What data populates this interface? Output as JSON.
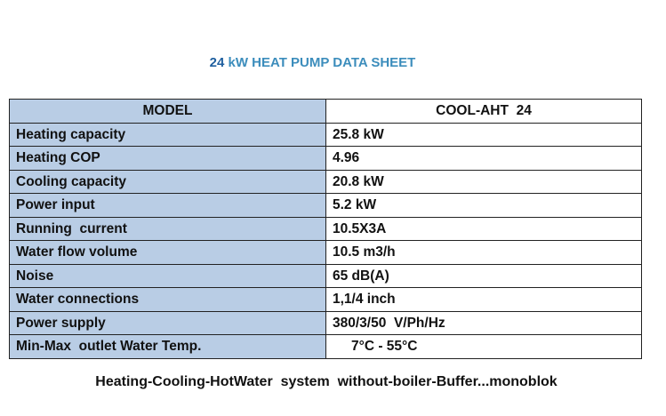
{
  "title": {
    "number": "24",
    "text": "kW HEAT PUMP DATA SHEET"
  },
  "table": {
    "header": [
      "MODEL",
      "COOL-AHT  24"
    ],
    "rows": [
      [
        "Heating capacity",
        "25.8 kW"
      ],
      [
        "Heating COP",
        "4.96"
      ],
      [
        "Cooling capacity",
        "20.8 kW"
      ],
      [
        "Power input",
        "5.2 kW"
      ],
      [
        "Running  current",
        "10.5X3A"
      ],
      [
        "Water flow volume",
        "10.5 m3/h"
      ],
      [
        "Noise",
        "65 dB(A)"
      ],
      [
        "Water connections",
        "1,1/4 inch"
      ],
      [
        "Power supply",
        "380/3/50  V/Ph/Hz"
      ],
      [
        "Min-Max  outlet Water Temp.",
        "7°C - 55°C"
      ]
    ]
  },
  "footer": "Heating-Cooling-HotWater  system  without-boiler-Buffer...monoblok"
}
